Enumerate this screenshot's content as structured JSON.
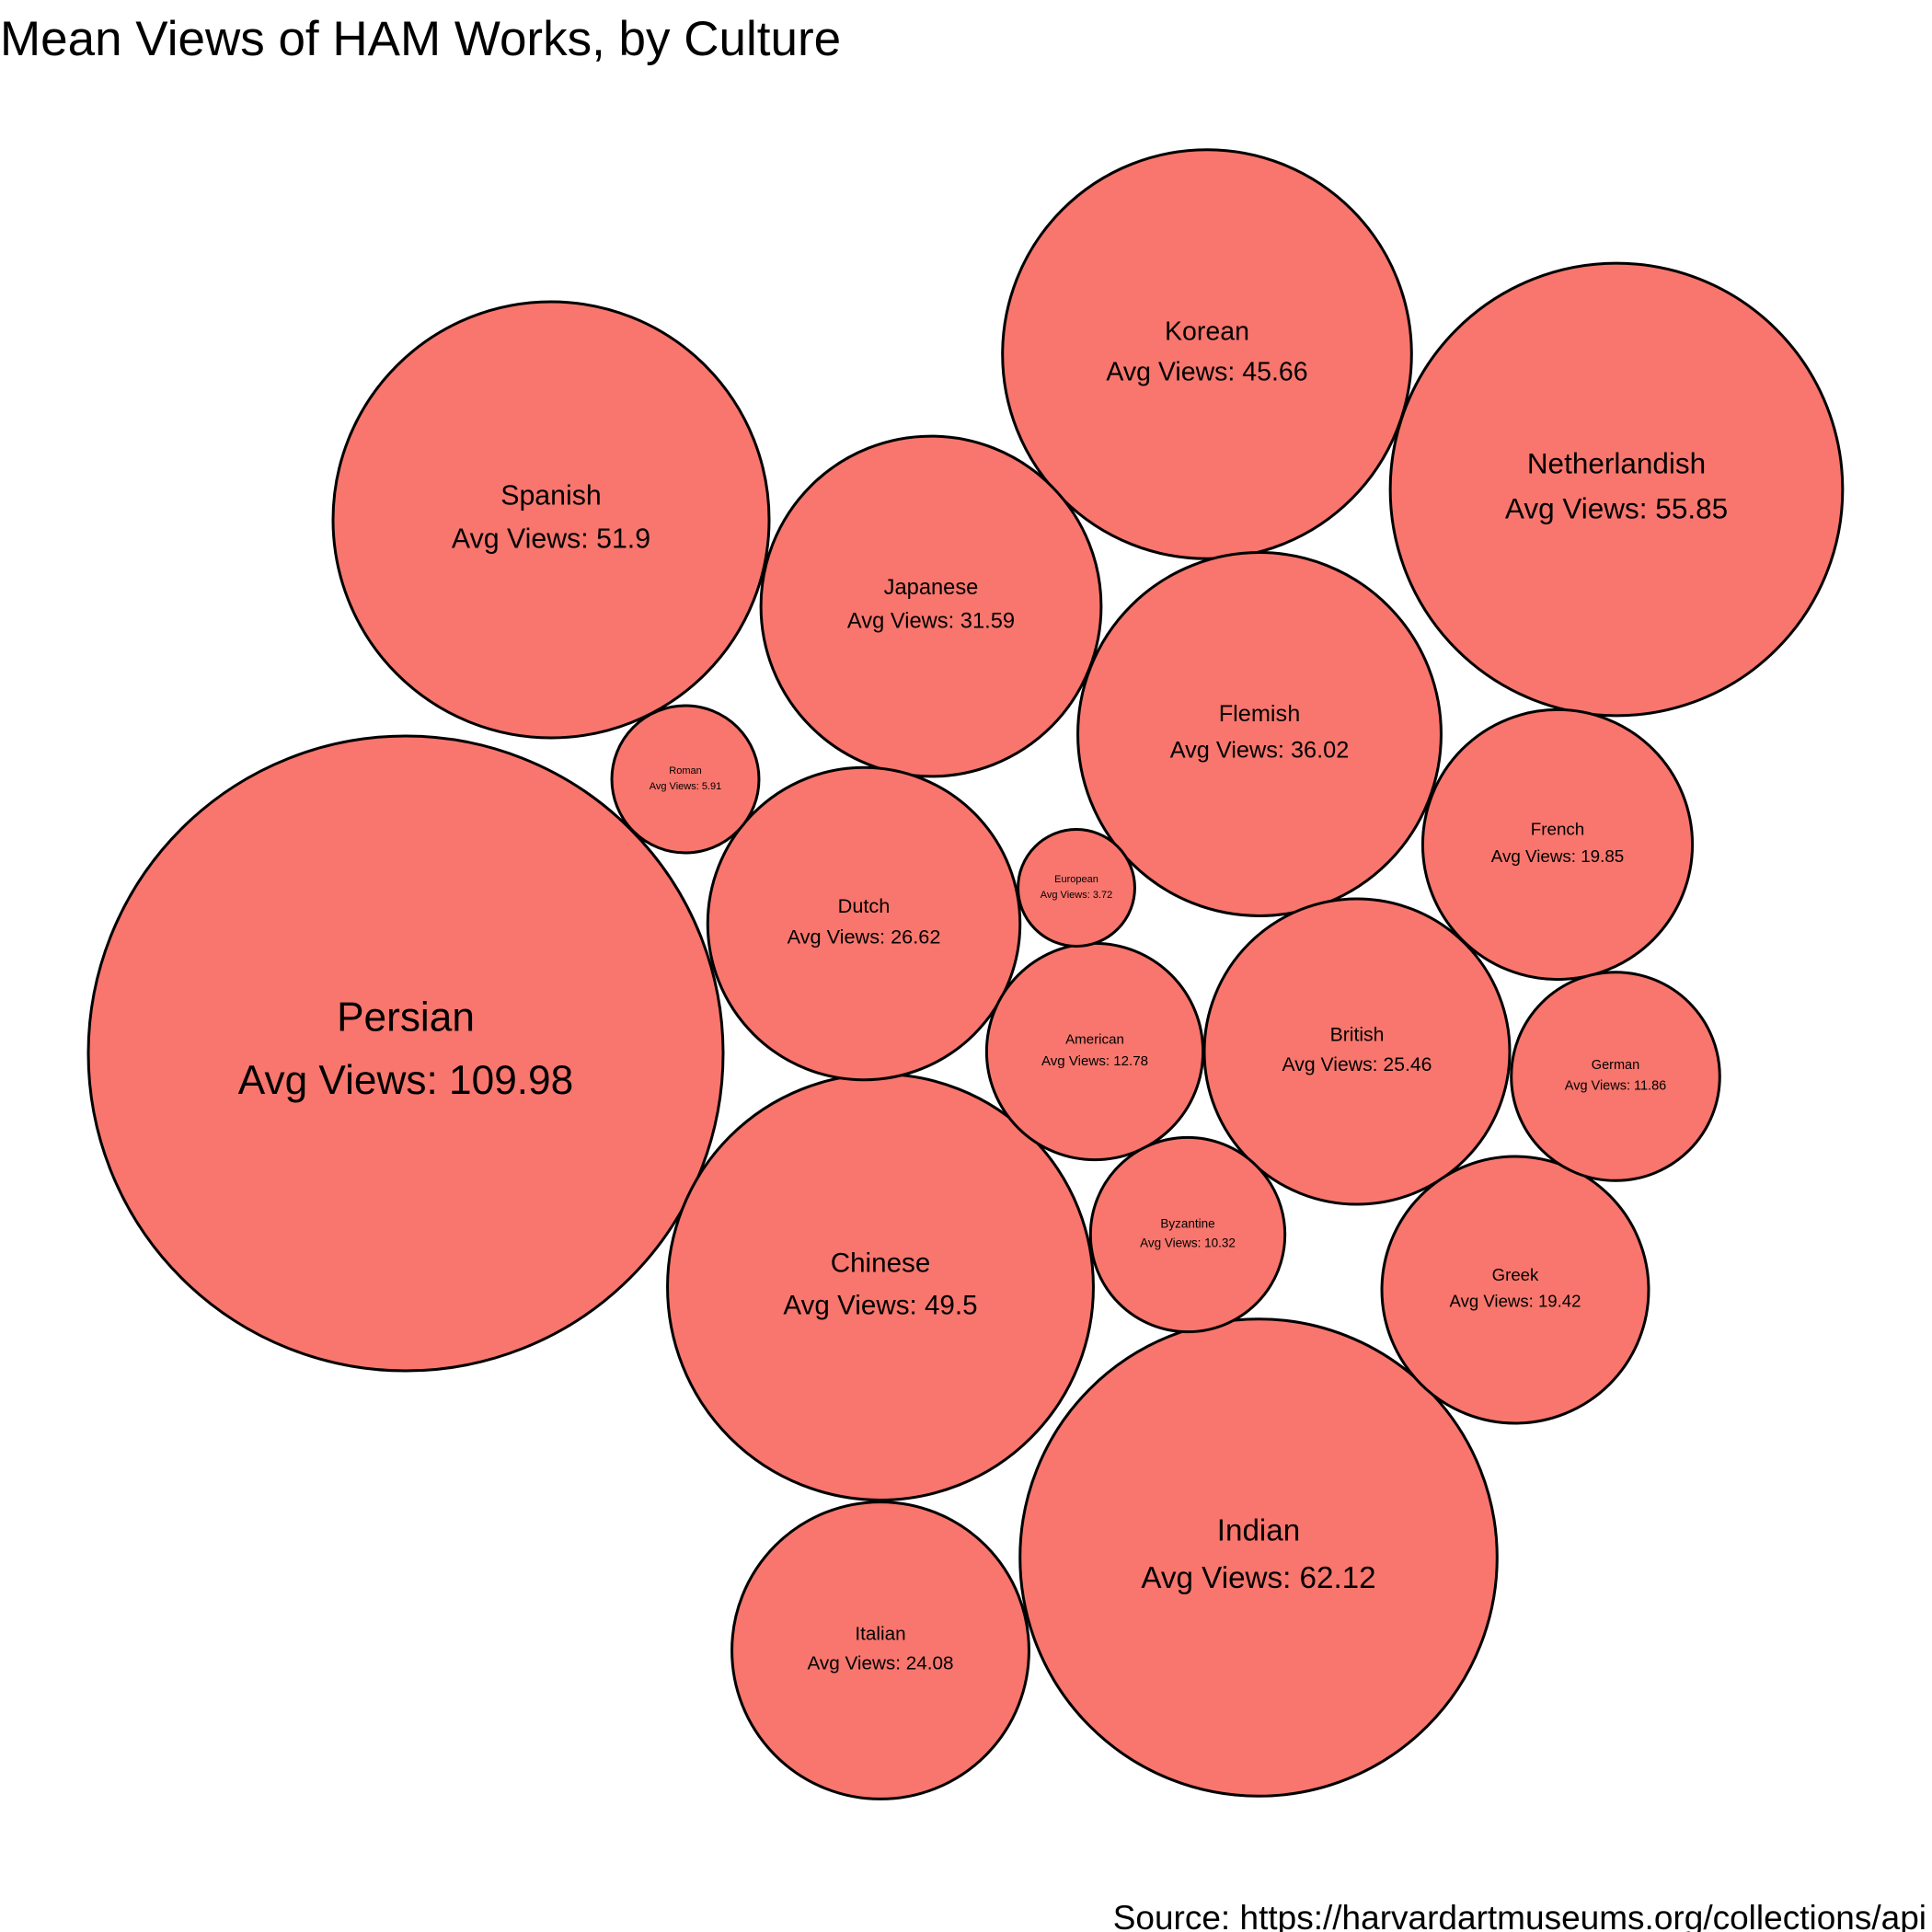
{
  "title": "Mean Views of HAM Works, by Culture",
  "caption": "Source: https://harvardartmuseums.org/collections/api",
  "value_prefix": "Avg Views: ",
  "colors": {
    "fill": "#F8766D",
    "stroke": "#000000",
    "background": "#FFFFFF"
  },
  "chart_data": {
    "type": "bubble",
    "title": "Mean Views of HAM Works, by Culture",
    "caption": "Source: https://harvardartmuseums.org/collections/api",
    "label_format": "Avg Views: {value}",
    "bubbles": [
      {
        "culture": "Persian",
        "avg_views": 109.98
      },
      {
        "culture": "Indian",
        "avg_views": 62.12
      },
      {
        "culture": "Netherlandish",
        "avg_views": 55.85
      },
      {
        "culture": "Spanish",
        "avg_views": 51.9
      },
      {
        "culture": "Chinese",
        "avg_views": 49.5
      },
      {
        "culture": "Korean",
        "avg_views": 45.66
      },
      {
        "culture": "Flemish",
        "avg_views": 36.02
      },
      {
        "culture": "Japanese",
        "avg_views": 31.59
      },
      {
        "culture": "Dutch",
        "avg_views": 26.62
      },
      {
        "culture": "British",
        "avg_views": 25.46
      },
      {
        "culture": "Italian",
        "avg_views": 24.08
      },
      {
        "culture": "French",
        "avg_views": 19.85
      },
      {
        "culture": "Greek",
        "avg_views": 19.42
      },
      {
        "culture": "American",
        "avg_views": 12.78
      },
      {
        "culture": "German",
        "avg_views": 11.86
      },
      {
        "culture": "Byzantine",
        "avg_views": 10.32
      },
      {
        "culture": "Roman",
        "avg_views": 5.91
      },
      {
        "culture": "European",
        "avg_views": 3.72
      }
    ]
  }
}
